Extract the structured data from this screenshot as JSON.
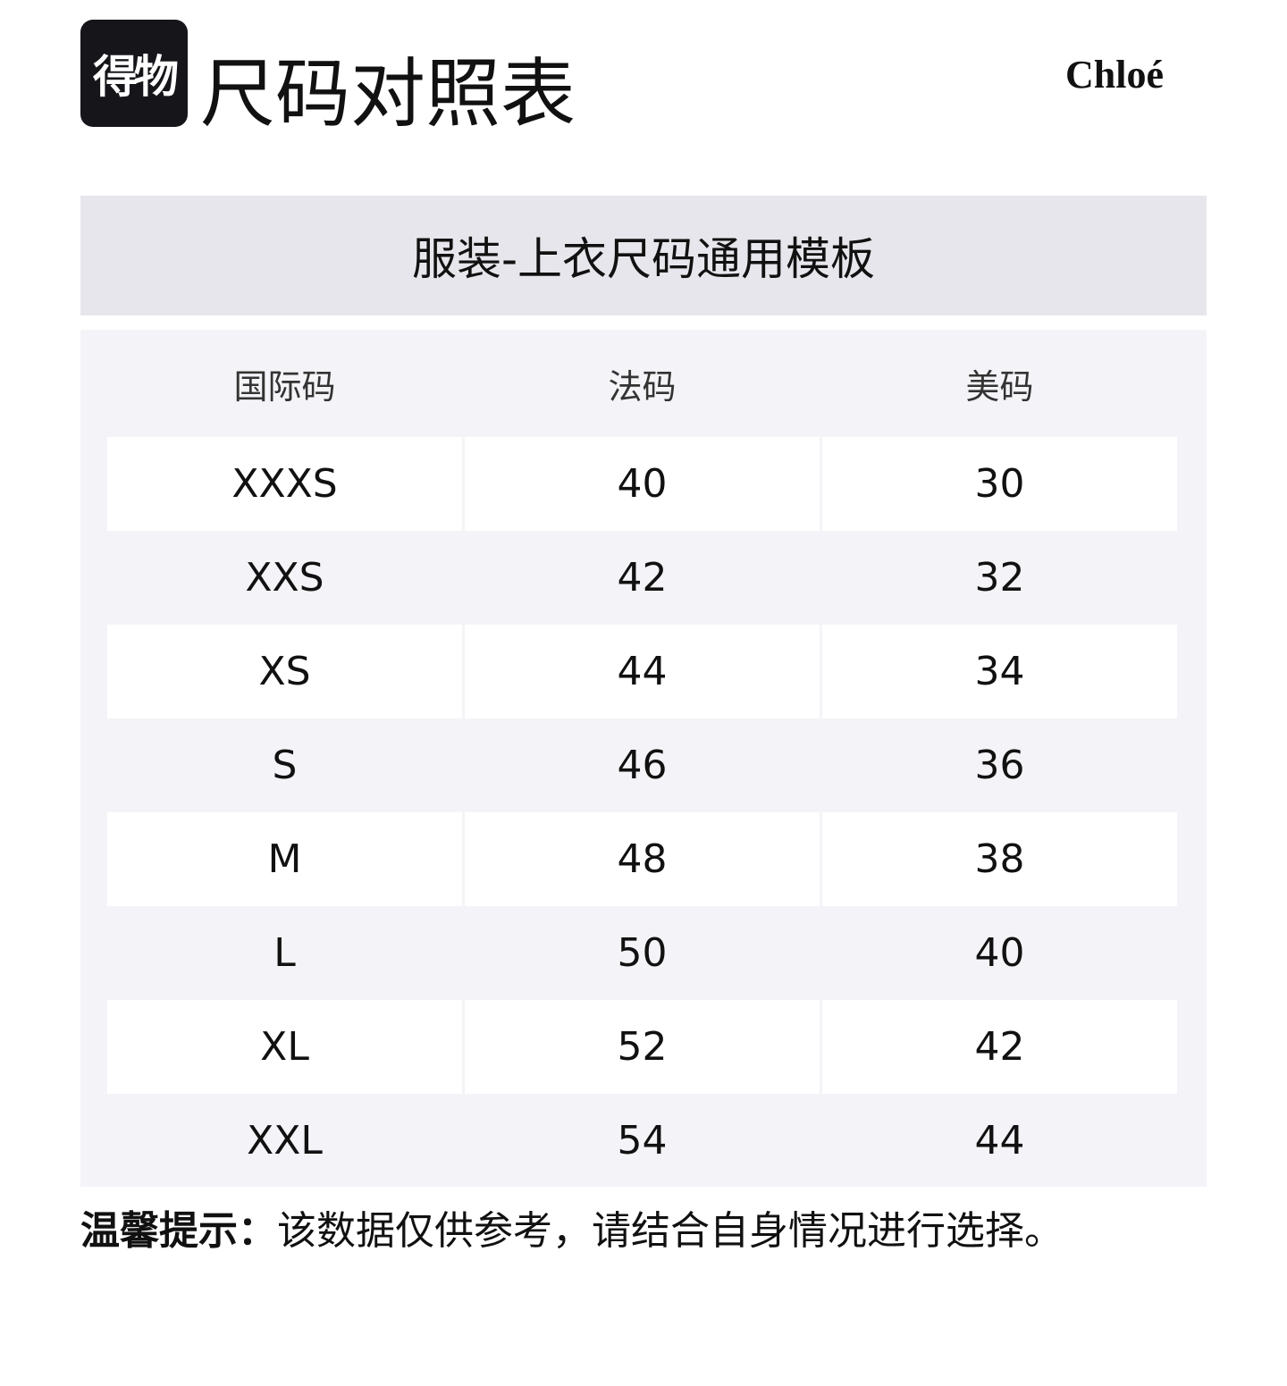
{
  "header": {
    "logo_text": "得物",
    "title": "尺码对照表",
    "brand": "Chloé"
  },
  "banner": {
    "title": "服装-上衣尺码通用模板"
  },
  "table": {
    "columns": [
      "国际码",
      "法码",
      "美码"
    ],
    "rows": [
      [
        "XXXS",
        "40",
        "30"
      ],
      [
        "XXS",
        "42",
        "32"
      ],
      [
        "XS",
        "44",
        "34"
      ],
      [
        "S",
        "46",
        "36"
      ],
      [
        "M",
        "48",
        "38"
      ],
      [
        "L",
        "50",
        "40"
      ],
      [
        "XL",
        "52",
        "42"
      ],
      [
        "XXL",
        "54",
        "44"
      ]
    ]
  },
  "note": {
    "label": "温馨提示：",
    "text": "该数据仅供参考，请结合自身情况进行选择。"
  }
}
